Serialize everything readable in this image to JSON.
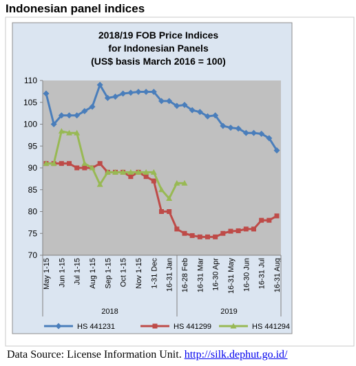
{
  "heading": "Indonesian panel indices",
  "chart_data": {
    "type": "line",
    "title": [
      "2018/19 FOB Price Indices",
      "for Indonesian Panels",
      "(US$ basis March 2016 = 100)"
    ],
    "categories": [
      "May 1-15",
      null,
      "Jun 1-15",
      null,
      "Jul 1-15",
      null,
      "Aug 1-15",
      null,
      "Sep 1-15",
      null,
      "Oct 1-15",
      null,
      "Nov 1-15",
      null,
      "1-31 Dec",
      null,
      "16-31 Jan",
      null,
      "16-28 Feb",
      null,
      "16-31 Mar",
      null,
      "16-30 Apr",
      null,
      "16-31 May",
      null,
      "16-30 Jun",
      null,
      "16-31 Jul",
      null,
      "16-31 Aug"
    ],
    "groups": [
      "2018",
      "2019"
    ],
    "series": [
      {
        "name": "HS 441231",
        "color": "#4a7ebb",
        "marker": "diamond",
        "values": [
          107,
          100,
          102,
          102,
          102,
          103,
          104,
          109,
          106,
          106.3,
          107,
          107.2,
          107.4,
          107.4,
          107.4,
          105.3,
          105.3,
          104.2,
          104.4,
          103.2,
          102.8,
          101.8,
          102,
          99.6,
          99.2,
          99,
          98,
          98,
          97.8,
          96.8,
          94
        ]
      },
      {
        "name": "HS 441299",
        "color": "#be4b48",
        "marker": "square",
        "values": [
          91,
          91,
          91,
          91,
          90,
          90,
          90,
          91,
          89,
          89,
          89,
          88,
          89,
          88,
          87,
          80,
          80,
          76,
          75,
          74.5,
          74.2,
          74.2,
          74.2,
          75,
          75.5,
          75.6,
          76,
          76,
          78,
          78,
          79
        ]
      },
      {
        "name": "HS 441294",
        "color": "#98b954",
        "marker": "triangle",
        "values": [
          91,
          91,
          98.4,
          98,
          98,
          91,
          90,
          86.2,
          89,
          89,
          89,
          89,
          89,
          89,
          89,
          85,
          83,
          86.5,
          86.5,
          null,
          null,
          null,
          null,
          null,
          null,
          null,
          null,
          null,
          null,
          null,
          null
        ]
      }
    ],
    "ylim": [
      70,
      110
    ],
    "yticks": [
      70,
      75,
      80,
      85,
      90,
      95,
      100,
      105,
      110
    ],
    "grid": false,
    "legend": "bottom"
  },
  "footer": {
    "text": "Data Source: License Information Unit.",
    "link": "http://silk.dephut.go.id/"
  }
}
